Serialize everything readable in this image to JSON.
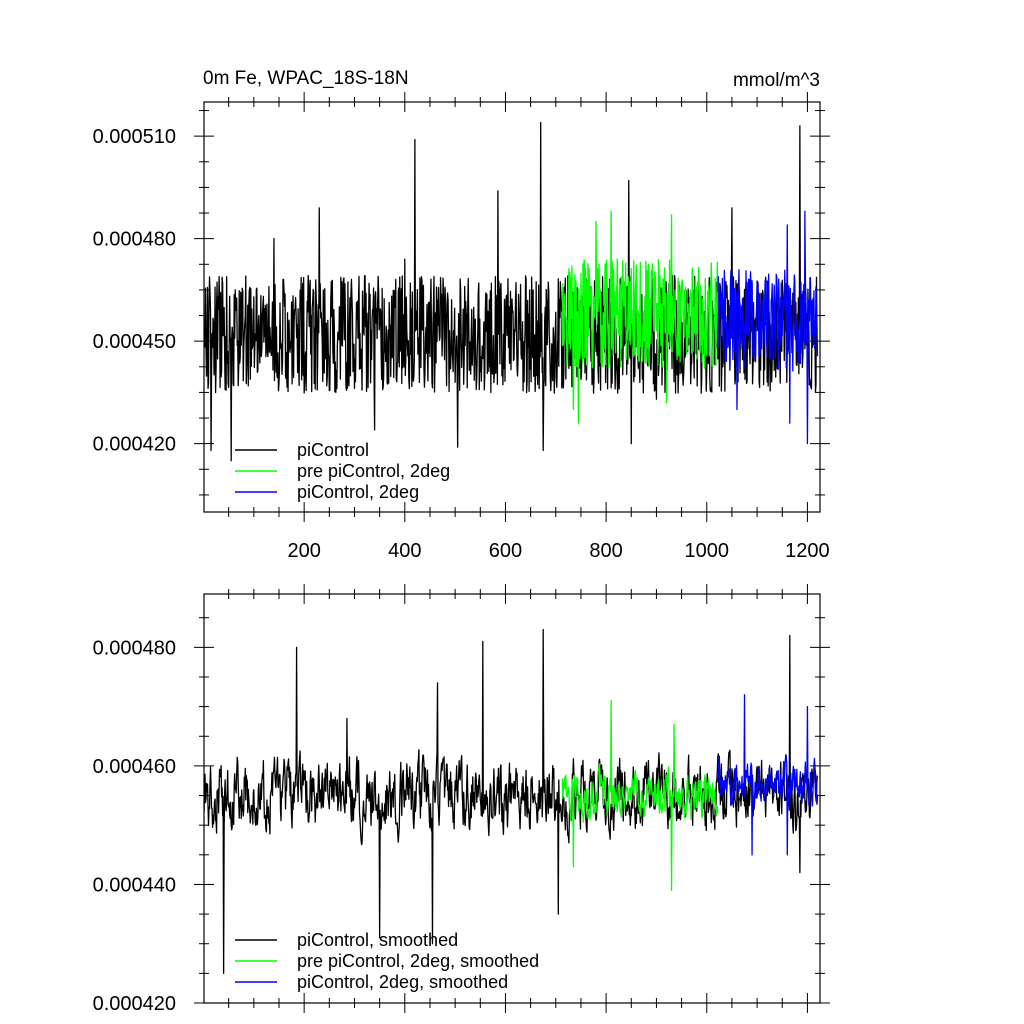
{
  "colors": {
    "piControl": "#000000",
    "pre_piControl_2deg": "#00ff00",
    "piControl_2deg": "#0000ff"
  },
  "chart_data": [
    {
      "type": "line",
      "title_left": "0m Fe, WPAC_18S-18N",
      "title_right": "mmol/m^3",
      "xlabel": "",
      "ylabel": "",
      "xlim": [
        1,
        1225
      ],
      "ylim": [
        0.0004,
        0.00052
      ],
      "xticks": [
        200,
        400,
        600,
        800,
        1000,
        1200
      ],
      "xtick_labels": [
        "200",
        "400",
        "600",
        "800",
        "1000",
        "1200"
      ],
      "yticks": [
        0.00042,
        0.00045,
        0.00048,
        0.00051
      ],
      "ytick_labels": [
        "0.000420",
        "0.000450",
        "0.000480",
        "0.000510"
      ],
      "grid": false,
      "legend_position": "bottom-left",
      "series": [
        {
          "name": "piControl",
          "color": "#000000",
          "x_start": 1,
          "x_end": 1220,
          "mean": 0.000452,
          "amplitude": 1.5e-05,
          "peaks": [
            [
              140,
              0.00048
            ],
            [
              230,
              0.000489
            ],
            [
              400,
              0.000474
            ],
            [
              420,
              0.000509
            ],
            [
              585,
              0.000494
            ],
            [
              670,
              0.000514
            ],
            [
              845,
              0.000497
            ],
            [
              1050,
              0.000489
            ],
            [
              1185,
              0.000513
            ]
          ],
          "troughs": [
            [
              15,
              0.000418
            ],
            [
              55,
              0.000415
            ],
            [
              340,
              0.000424
            ],
            [
              505,
              0.000419
            ],
            [
              675,
              0.000418
            ],
            [
              850,
              0.00042
            ],
            [
              900,
              0.000433
            ]
          ]
        },
        {
          "name": "pre piControl, 2deg",
          "color": "#00ff00",
          "x_start": 712,
          "x_end": 1022,
          "mean": 0.000458,
          "amplitude": 1.4e-05,
          "peaks": [
            [
              780,
              0.000485
            ],
            [
              810,
              0.000488
            ],
            [
              930,
              0.000487
            ]
          ],
          "troughs": [
            [
              745,
              0.000426
            ],
            [
              735,
              0.00043
            ],
            [
              920,
              0.000432
            ]
          ]
        },
        {
          "name": "piControl, 2deg",
          "color": "#0000ff",
          "x_start": 1022,
          "x_end": 1220,
          "mean": 0.000456,
          "amplitude": 1.3e-05,
          "peaks": [
            [
              1160,
              0.000484
            ],
            [
              1195,
              0.000488
            ]
          ],
          "troughs": [
            [
              1060,
              0.00043
            ],
            [
              1200,
              0.00042
            ],
            [
              1165,
              0.000426
            ]
          ]
        }
      ]
    },
    {
      "type": "line",
      "title_left": "",
      "title_right": "",
      "xlabel": "",
      "ylabel": "",
      "xlim": [
        1,
        1225
      ],
      "ylim": [
        0.00042,
        0.000489
      ],
      "xticks": [
        200,
        400,
        600,
        800,
        1000,
        1200
      ],
      "xtick_labels": [],
      "yticks": [
        0.00042,
        0.00044,
        0.00046,
        0.00048
      ],
      "ytick_labels": [
        "0.000420",
        "0.000440",
        "0.000460",
        "0.000480"
      ],
      "grid": false,
      "legend_position": "bottom-left",
      "series": [
        {
          "name": "piControl, smoothed",
          "color": "#000000",
          "x_start": 1,
          "x_end": 1220,
          "mean": 0.000455,
          "amplitude": 8.5e-06,
          "peaks": [
            [
              185,
              0.00048
            ],
            [
              285,
              0.000468
            ],
            [
              465,
              0.000474
            ],
            [
              555,
              0.000481
            ],
            [
              675,
              0.000483
            ],
            [
              1165,
              0.000482
            ]
          ],
          "troughs": [
            [
              40,
              0.000425
            ],
            [
              350,
              0.000431
            ],
            [
              455,
              0.00043
            ],
            [
              705,
              0.000435
            ],
            [
              1185,
              0.000442
            ]
          ]
        },
        {
          "name": "pre piControl, 2deg, smoothed",
          "color": "#00ff00",
          "x_start": 712,
          "x_end": 1022,
          "mean": 0.000455,
          "amplitude": 5.5e-06,
          "peaks": [
            [
              810,
              0.000471
            ],
            [
              935,
              0.000467
            ]
          ],
          "troughs": [
            [
              930,
              0.000439
            ],
            [
              735,
              0.000443
            ]
          ]
        },
        {
          "name": "piControl, 2deg, smoothed",
          "color": "#0000ff",
          "x_start": 1022,
          "x_end": 1220,
          "mean": 0.000457,
          "amplitude": 5.5e-06,
          "peaks": [
            [
              1075,
              0.000472
            ],
            [
              1200,
              0.00047
            ]
          ],
          "troughs": [
            [
              1160,
              0.000445
            ],
            [
              1090,
              0.000445
            ]
          ]
        }
      ]
    }
  ]
}
